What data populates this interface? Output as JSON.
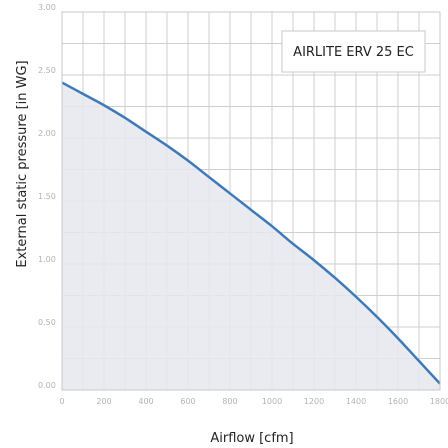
{
  "chart_data": {
    "type": "area",
    "xlabel": "Airflow [cfm]",
    "ylabel": "External static pressure [in WG]",
    "xlim": [
      0,
      1800
    ],
    "ylim": [
      0,
      3.0
    ],
    "x_ticks": [
      0,
      100,
      200,
      300,
      400,
      500,
      600,
      700,
      800,
      900,
      1000,
      1100,
      1200,
      1300,
      1400,
      1500,
      1600,
      1700,
      1800
    ],
    "x_tick_labels": [
      "0",
      "200",
      "400",
      "600",
      "800",
      "1000",
      "1200",
      "1400",
      "1600",
      "1800"
    ],
    "x_tick_label_values": [
      0,
      200,
      400,
      600,
      800,
      1000,
      1200,
      1400,
      1600,
      1800
    ],
    "y_ticks": [
      0,
      0.25,
      0.5,
      0.75,
      1.0,
      1.25,
      1.5,
      1.75,
      2.0,
      2.25,
      2.5,
      2.75,
      3.0
    ],
    "y_tick_labels": [
      "0.00",
      "0.50",
      "1.00",
      "1.50",
      "2.00",
      "2.50",
      "3.00"
    ],
    "y_tick_label_values": [
      0,
      0.5,
      1.0,
      1.5,
      2.0,
      2.5,
      3.0
    ],
    "grid": true,
    "legend_position": "top-right",
    "series": [
      {
        "name": "AIRLITE ERV 25 EC",
        "color": "#3e7ab8",
        "fill": "#e6e8ee",
        "x": [
          0,
          100,
          200,
          300,
          400,
          500,
          600,
          700,
          800,
          900,
          1000,
          1100,
          1200,
          1300,
          1400,
          1500,
          1600,
          1700,
          1800
        ],
        "y": [
          2.44,
          2.35,
          2.26,
          2.16,
          2.05,
          1.94,
          1.82,
          1.69,
          1.56,
          1.43,
          1.3,
          1.16,
          1.03,
          0.89,
          0.74,
          0.58,
          0.41,
          0.23,
          0.05
        ]
      }
    ]
  }
}
